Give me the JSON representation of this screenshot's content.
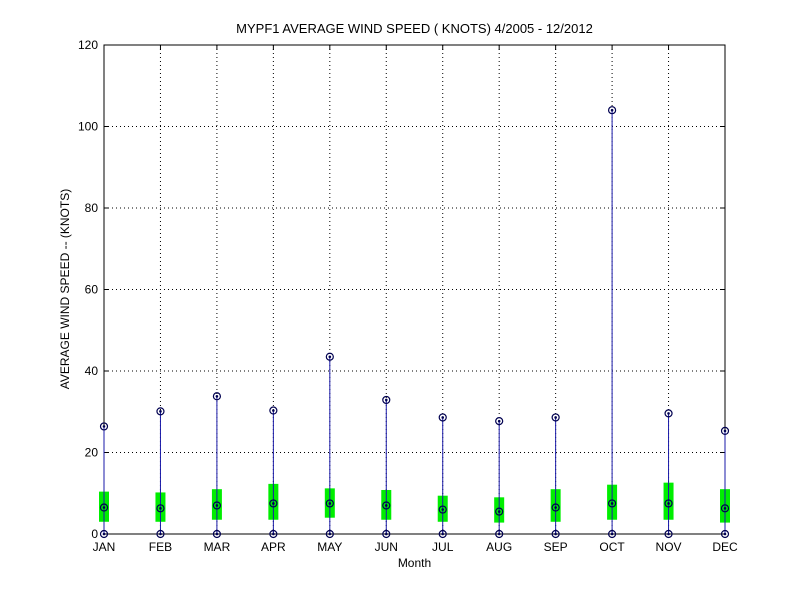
{
  "chart_data": {
    "type": "box",
    "title": "MYPF1  AVERAGE WIND SPEED ( KNOTS) 4/2005 - 12/2012",
    "xlabel": "Month",
    "ylabel": "AVERAGE WIND SPEED -- (KNOTS)",
    "ylim": [
      0,
      120
    ],
    "yticks": [
      0,
      20,
      40,
      60,
      80,
      100,
      120
    ],
    "grid": true,
    "categories": [
      "JAN",
      "FEB",
      "MAR",
      "APR",
      "MAY",
      "JUN",
      "JUL",
      "AUG",
      "SEP",
      "OCT",
      "NOV",
      "DEC"
    ],
    "min": [
      0,
      0,
      0,
      0,
      0,
      0,
      0,
      0,
      0,
      0,
      0,
      0
    ],
    "max": [
      26.4,
      30.1,
      33.8,
      30.3,
      43.5,
      32.9,
      28.6,
      27.7,
      28.6,
      104.0,
      29.6,
      25.3
    ],
    "q1": [
      3.0,
      3.0,
      3.5,
      3.5,
      4.0,
      3.5,
      3.0,
      2.8,
      3.0,
      3.5,
      3.5,
      2.8
    ],
    "q3": [
      10.4,
      10.2,
      11.0,
      12.3,
      11.2,
      10.8,
      9.4,
      9.0,
      11.0,
      12.1,
      12.6,
      11.0
    ],
    "median": [
      6.5,
      6.3,
      7.0,
      7.5,
      7.5,
      7.0,
      6.0,
      5.5,
      6.5,
      7.5,
      7.5,
      6.3
    ],
    "colors": {
      "box": "#00ee00",
      "whisker": "#1a1aa8",
      "marker": "#000050",
      "axis": "#000000",
      "grid": "#000000"
    }
  }
}
